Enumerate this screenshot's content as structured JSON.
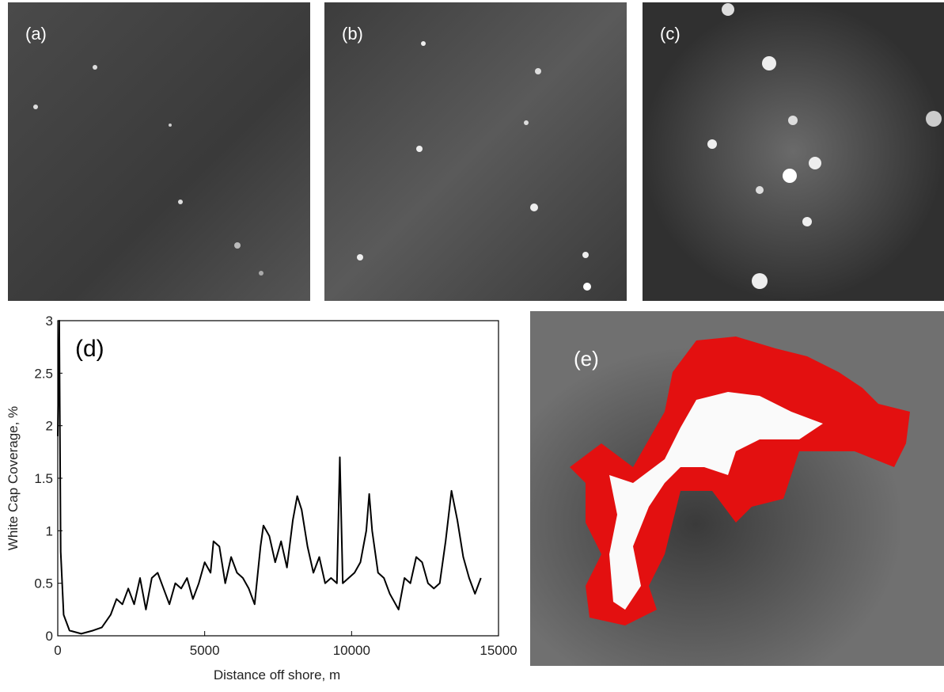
{
  "panels": {
    "a": "(a)",
    "b": "(b)",
    "c": "(c)",
    "e": "(e)"
  },
  "chart_data": {
    "type": "line",
    "annotation": "(d)",
    "x_label": "Distance off shore, m",
    "y_label": "White Cap Coverage, %",
    "xlim": [
      0,
      15000
    ],
    "ylim": [
      0,
      3
    ],
    "xticks": [
      0,
      5000,
      10000,
      15000
    ],
    "yticks": [
      0,
      0.5,
      1,
      1.5,
      2,
      2.5,
      3
    ],
    "x": [
      0,
      50,
      100,
      200,
      400,
      800,
      1200,
      1500,
      1800,
      2000,
      2200,
      2400,
      2600,
      2800,
      3000,
      3200,
      3400,
      3600,
      3800,
      4000,
      4200,
      4400,
      4600,
      4800,
      5000,
      5200,
      5300,
      5500,
      5700,
      5900,
      6100,
      6300,
      6500,
      6700,
      6900,
      7000,
      7200,
      7400,
      7600,
      7800,
      8000,
      8150,
      8300,
      8500,
      8700,
      8900,
      9100,
      9300,
      9500,
      9600,
      9700,
      9900,
      10100,
      10300,
      10500,
      10600,
      10700,
      10900,
      11100,
      11300,
      11500,
      11600,
      11800,
      12000,
      12200,
      12400,
      12600,
      12800,
      13000,
      13200,
      13400,
      13600,
      13800,
      14000,
      14200,
      14400
    ],
    "series": [
      {
        "name": "White cap coverage",
        "color": "#000000",
        "values": [
          1.9,
          3.0,
          0.8,
          0.2,
          0.05,
          0.02,
          0.05,
          0.08,
          0.2,
          0.35,
          0.3,
          0.45,
          0.3,
          0.55,
          0.25,
          0.55,
          0.6,
          0.45,
          0.3,
          0.5,
          0.45,
          0.55,
          0.35,
          0.5,
          0.7,
          0.6,
          0.9,
          0.85,
          0.5,
          0.75,
          0.6,
          0.55,
          0.45,
          0.3,
          0.85,
          1.05,
          0.95,
          0.7,
          0.9,
          0.65,
          1.1,
          1.33,
          1.2,
          0.85,
          0.6,
          0.75,
          0.5,
          0.55,
          0.5,
          1.7,
          0.5,
          0.55,
          0.6,
          0.7,
          1.0,
          1.35,
          1.0,
          0.6,
          0.55,
          0.4,
          0.3,
          0.25,
          0.55,
          0.5,
          0.75,
          0.7,
          0.5,
          0.45,
          0.5,
          0.9,
          1.38,
          1.1,
          0.75,
          0.55,
          0.4,
          0.55
        ]
      }
    ],
    "grid": false
  }
}
